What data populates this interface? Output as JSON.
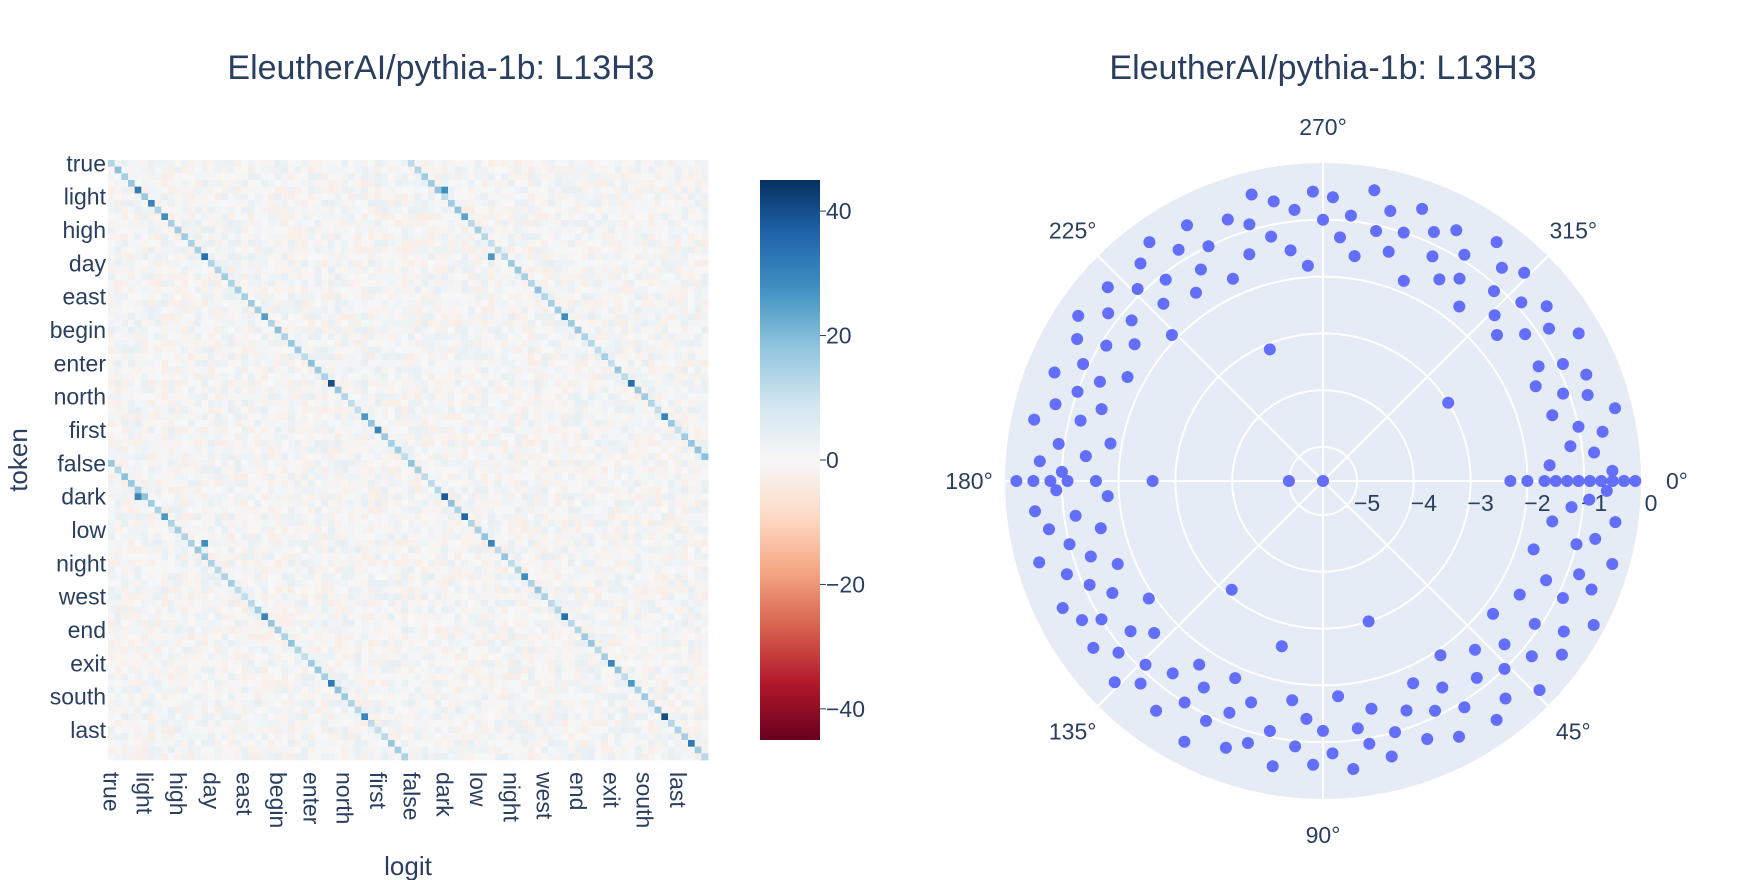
{
  "chart_data": [
    {
      "type": "heatmap",
      "title": "EleutherAI/pythia-1b: L13H3",
      "xlabel": "logit",
      "ylabel": "token",
      "tokens": [
        "true",
        "light",
        "high",
        "day",
        "east",
        "begin",
        "enter",
        "north",
        "first",
        "false",
        "dark",
        "low",
        "night",
        "west",
        "end",
        "exit",
        "south",
        "last"
      ],
      "size": 90,
      "groups": 18,
      "half": 45,
      "diagonal_value": 15,
      "strong_cells": [
        [
          4,
          4,
          32
        ],
        [
          6,
          6,
          30
        ],
        [
          8,
          8,
          28
        ],
        [
          14,
          14,
          34
        ],
        [
          23,
          23,
          25
        ],
        [
          33,
          33,
          40
        ],
        [
          38,
          38,
          26
        ],
        [
          40,
          40,
          30
        ],
        [
          50,
          50,
          38
        ],
        [
          53,
          53,
          36
        ],
        [
          57,
          57,
          30
        ],
        [
          62,
          62,
          28
        ],
        [
          68,
          68,
          34
        ],
        [
          75,
          75,
          30
        ],
        [
          78,
          78,
          26
        ],
        [
          83,
          83,
          40
        ],
        [
          87,
          87,
          32
        ],
        [
          50,
          4,
          30
        ],
        [
          53,
          8,
          26
        ],
        [
          57,
          14,
          28
        ],
        [
          68,
          23,
          30
        ],
        [
          78,
          33,
          32
        ],
        [
          83,
          38,
          30
        ],
        [
          4,
          50,
          28
        ],
        [
          8,
          53,
          24
        ],
        [
          14,
          57,
          26
        ],
        [
          23,
          68,
          28
        ],
        [
          33,
          78,
          34
        ],
        [
          38,
          83,
          30
        ]
      ],
      "colorbar": {
        "ticks": [
          40,
          20,
          0,
          -20,
          -40
        ],
        "min": -45,
        "max": 45
      },
      "colorscale": [
        "#67001f",
        "#b2182b",
        "#d6604d",
        "#f4a582",
        "#fddbc7",
        "#f7f7f7",
        "#d1e5f0",
        "#92c5de",
        "#4393c3",
        "#2166ac",
        "#053061"
      ]
    },
    {
      "type": "scatter",
      "subtype": "polar",
      "title": "EleutherAI/pythia-1b: L13H3",
      "radial_ticks": [
        -5,
        -4,
        -3,
        -2,
        -1,
        0
      ],
      "radial_range": [
        -5.6,
        0
      ],
      "angular_ticks": [
        "0°",
        "45°",
        "90°",
        "135°",
        "180°",
        "225°",
        "270°",
        "315°"
      ],
      "angular_direction": "clockwise",
      "marker_color": "#636efa",
      "points": [
        [
          0,
          -0.1
        ],
        [
          0,
          -0.3
        ],
        [
          0,
          -0.5
        ],
        [
          0,
          -0.7
        ],
        [
          0,
          -0.9
        ],
        [
          0,
          -1.1
        ],
        [
          0,
          -1.3
        ],
        [
          0,
          -1.5
        ],
        [
          0,
          -1.7
        ],
        [
          0,
          -2.0
        ],
        [
          0,
          -2.3
        ],
        [
          0,
          -5.6
        ],
        [
          2,
          -0.6
        ],
        [
          4,
          -0.9
        ],
        [
          6,
          -1.2
        ],
        [
          8,
          -0.4
        ],
        [
          10,
          -1.5
        ],
        [
          12,
          -0.7
        ],
        [
          14,
          -1.0
        ],
        [
          16,
          -0.3
        ],
        [
          18,
          -1.7
        ],
        [
          20,
          -0.8
        ],
        [
          22,
          -0.5
        ],
        [
          24,
          -1.3
        ],
        [
          26,
          -0.9
        ],
        [
          28,
          -0.2
        ],
        [
          30,
          -1.6
        ],
        [
          32,
          -0.6
        ],
        [
          34,
          -1.1
        ],
        [
          36,
          -0.4
        ],
        [
          38,
          -1.8
        ],
        [
          40,
          -0.8
        ],
        [
          42,
          -1.3
        ],
        [
          44,
          -0.3
        ],
        [
          46,
          -1.0
        ],
        [
          48,
          -1.6
        ],
        [
          50,
          -0.6
        ],
        [
          52,
          -1.2
        ],
        [
          54,
          -0.4
        ],
        [
          56,
          -1.9
        ],
        [
          58,
          -0.9
        ],
        [
          60,
          -1.4
        ],
        [
          62,
          -0.5
        ],
        [
          64,
          -1.1
        ],
        [
          66,
          -1.7
        ],
        [
          68,
          -0.7
        ],
        [
          70,
          -1.3
        ],
        [
          72,
          -3.0
        ],
        [
          74,
          -1.0
        ],
        [
          76,
          -0.6
        ],
        [
          78,
          -1.5
        ],
        [
          80,
          -0.9
        ],
        [
          82,
          -1.2
        ],
        [
          84,
          -0.5
        ],
        [
          86,
          -1.8
        ],
        [
          88,
          -0.8
        ],
        [
          90,
          -1.2
        ],
        [
          92,
          -0.6
        ],
        [
          94,
          -1.4
        ],
        [
          96,
          -0.9
        ],
        [
          98,
          -1.7
        ],
        [
          100,
          -0.5
        ],
        [
          102,
          -1.1
        ],
        [
          104,
          -2.6
        ],
        [
          106,
          -0.8
        ],
        [
          108,
          -1.5
        ],
        [
          110,
          -0.6
        ],
        [
          112,
          -1.2
        ],
        [
          114,
          -1.8
        ],
        [
          116,
          -0.9
        ],
        [
          118,
          -0.4
        ],
        [
          120,
          -1.4
        ],
        [
          122,
          -1.0
        ],
        [
          124,
          -1.7
        ],
        [
          126,
          -0.6
        ],
        [
          128,
          -1.3
        ],
        [
          130,
          -3.1
        ],
        [
          132,
          -0.8
        ],
        [
          134,
          -1.1
        ],
        [
          136,
          -0.5
        ],
        [
          138,
          -1.6
        ],
        [
          140,
          -0.9
        ],
        [
          142,
          -1.3
        ],
        [
          144,
          -0.6
        ],
        [
          146,
          -1.9
        ],
        [
          148,
          -1.0
        ],
        [
          150,
          -0.7
        ],
        [
          152,
          -1.4
        ],
        [
          154,
          -0.5
        ],
        [
          156,
          -1.1
        ],
        [
          158,
          -1.7
        ],
        [
          160,
          -0.8
        ],
        [
          162,
          -1.3
        ],
        [
          164,
          -0.4
        ],
        [
          166,
          -1.0
        ],
        [
          168,
          -1.6
        ],
        [
          170,
          -0.7
        ],
        [
          172,
          -1.2
        ],
        [
          174,
          -0.5
        ],
        [
          176,
          -1.8
        ],
        [
          178,
          -0.9
        ],
        [
          180,
          -0.2
        ],
        [
          180,
          -0.5
        ],
        [
          180,
          -0.8
        ],
        [
          180,
          -1.1
        ],
        [
          180,
          -1.6
        ],
        [
          180,
          -2.6
        ],
        [
          180,
          -5.0
        ],
        [
          182,
          -1.0
        ],
        [
          184,
          -0.6
        ],
        [
          186,
          -1.4
        ],
        [
          188,
          -0.9
        ],
        [
          190,
          -1.8
        ],
        [
          192,
          -0.4
        ],
        [
          194,
          -1.2
        ],
        [
          196,
          -0.7
        ],
        [
          198,
          -1.5
        ],
        [
          200,
          -1.0
        ],
        [
          202,
          -0.5
        ],
        [
          204,
          -1.3
        ],
        [
          206,
          -0.9
        ],
        [
          208,
          -1.7
        ],
        [
          210,
          -0.6
        ],
        [
          212,
          -1.1
        ],
        [
          214,
          -0.4
        ],
        [
          216,
          -1.5
        ],
        [
          218,
          -0.8
        ],
        [
          220,
          -1.2
        ],
        [
          222,
          -0.5
        ],
        [
          224,
          -1.9
        ],
        [
          226,
          -0.9
        ],
        [
          228,
          -1.4
        ],
        [
          230,
          -0.6
        ],
        [
          232,
          -1.1
        ],
        [
          234,
          -0.4
        ],
        [
          236,
          -1.6
        ],
        [
          238,
          -0.8
        ],
        [
          240,
          -1.3
        ],
        [
          242,
          -0.5
        ],
        [
          244,
          -1.0
        ],
        [
          246,
          -1.7
        ],
        [
          248,
          -3.1
        ],
        [
          250,
          -0.7
        ],
        [
          252,
          -1.4
        ],
        [
          254,
          -0.9
        ],
        [
          256,
          -0.4
        ],
        [
          258,
          -1.2
        ],
        [
          260,
          -0.6
        ],
        [
          262,
          -1.5
        ],
        [
          264,
          -0.8
        ],
        [
          266,
          -1.8
        ],
        [
          268,
          -0.5
        ],
        [
          270,
          -1.0
        ],
        [
          272,
          -0.6
        ],
        [
          274,
          -1.3
        ],
        [
          276,
          -0.9
        ],
        [
          278,
          -1.6
        ],
        [
          280,
          -0.4
        ],
        [
          282,
          -1.1
        ],
        [
          284,
          -0.7
        ],
        [
          286,
          -1.4
        ],
        [
          288,
          -1.0
        ],
        [
          290,
          -0.5
        ],
        [
          292,
          -1.8
        ],
        [
          294,
          -0.8
        ],
        [
          296,
          -1.2
        ],
        [
          298,
          -0.6
        ],
        [
          300,
          -1.5
        ],
        [
          302,
          -0.9
        ],
        [
          304,
          -1.3
        ],
        [
          306,
          -0.4
        ],
        [
          308,
          -1.7
        ],
        [
          310,
          -0.7
        ],
        [
          312,
          -1.1
        ],
        [
          314,
          -0.5
        ],
        [
          316,
          -1.4
        ],
        [
          318,
          -0.9
        ],
        [
          320,
          -1.6
        ],
        [
          322,
          -0.6
        ],
        [
          324,
          -1.2
        ],
        [
          326,
          -0.8
        ],
        [
          328,
          -3.0
        ],
        [
          330,
          -0.4
        ],
        [
          332,
          -1.3
        ],
        [
          334,
          -0.9
        ],
        [
          336,
          -1.5
        ],
        [
          338,
          -0.6
        ],
        [
          340,
          -1.1
        ],
        [
          342,
          -0.7
        ],
        [
          344,
          -1.4
        ],
        [
          346,
          -0.3
        ],
        [
          348,
          -1.0
        ],
        [
          350,
          -0.6
        ],
        [
          352,
          -1.2
        ],
        [
          354,
          -0.8
        ],
        [
          356,
          -1.6
        ],
        [
          358,
          -0.5
        ]
      ]
    }
  ]
}
